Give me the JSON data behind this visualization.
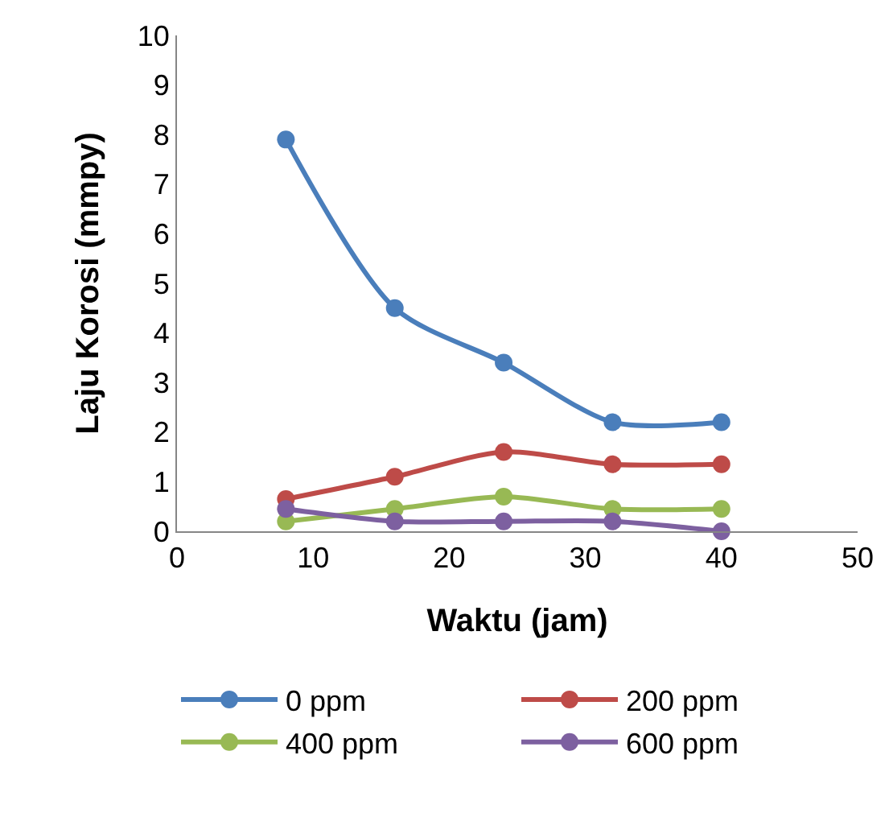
{
  "chart_data": {
    "type": "line",
    "xlabel": "Waktu (jam)",
    "ylabel": "Laju Korosi (mmpy)",
    "x": [
      8,
      16,
      24,
      32,
      40
    ],
    "series": [
      {
        "name": "0 ppm",
        "color": "#4a7ebb",
        "values": [
          7.9,
          4.5,
          3.4,
          2.2,
          2.2
        ]
      },
      {
        "name": "200 ppm",
        "color": "#be4b48",
        "values": [
          0.65,
          1.1,
          1.6,
          1.35,
          1.35
        ]
      },
      {
        "name": "400 ppm",
        "color": "#98b954",
        "values": [
          0.2,
          0.45,
          0.7,
          0.45,
          0.45
        ]
      },
      {
        "name": "600 ppm",
        "color": "#7d60a0",
        "values": [
          0.45,
          0.2,
          0.2,
          0.2,
          0
        ]
      }
    ],
    "xlim": [
      0,
      50
    ],
    "xticks": [
      0,
      10,
      20,
      30,
      40,
      50
    ],
    "ylim": [
      0,
      10
    ],
    "yticks": [
      0,
      1,
      2,
      3,
      4,
      5,
      6,
      7,
      8,
      9,
      10
    ],
    "grid": false,
    "legend": "bottom",
    "marker": "circle",
    "line_style": "solid"
  }
}
